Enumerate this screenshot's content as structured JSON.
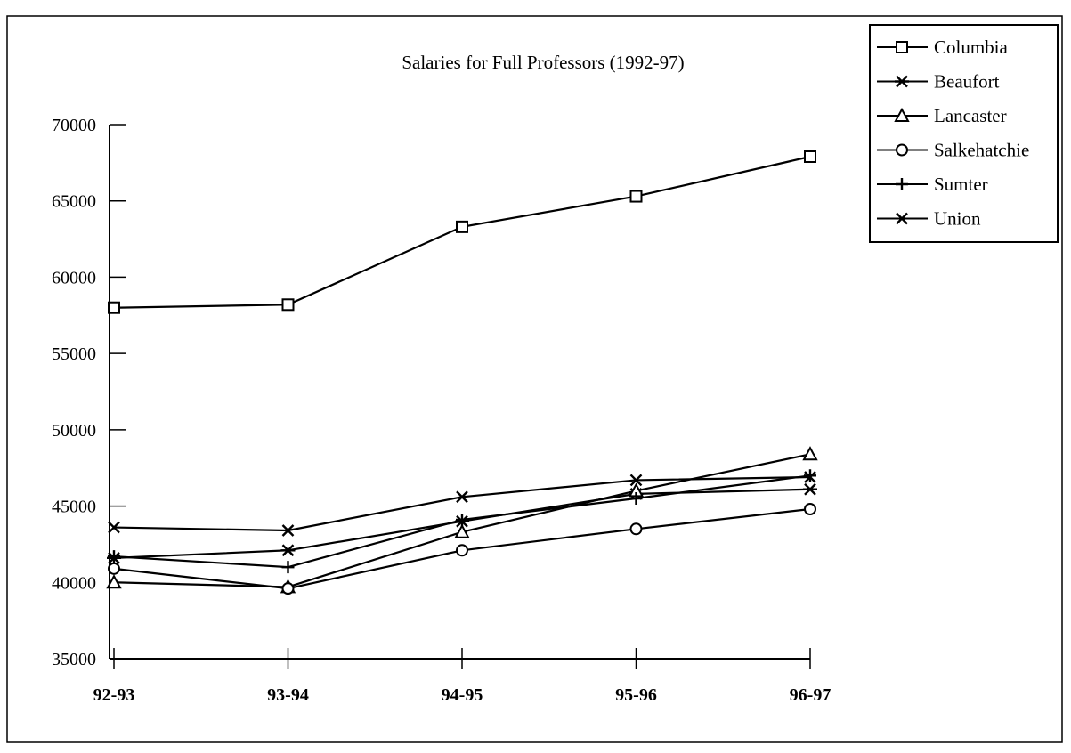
{
  "chart_data": {
    "type": "line",
    "title": "Salaries for Full Professors (1992-97)",
    "xlabel": "",
    "ylabel": "",
    "categories": [
      "92-93",
      "93-94",
      "94-95",
      "95-96",
      "96-97"
    ],
    "ylim": [
      35000,
      70000
    ],
    "yticks": [
      35000,
      40000,
      45000,
      50000,
      55000,
      60000,
      65000,
      70000
    ],
    "legend_position": "top-right",
    "grid": false,
    "series": [
      {
        "name": "Columbia",
        "marker": "square",
        "values": [
          58000,
          58200,
          63300,
          65300,
          67900
        ]
      },
      {
        "name": "Beaufort",
        "marker": "asterisk",
        "values": [
          41600,
          42100,
          44000,
          45800,
          46100
        ]
      },
      {
        "name": "Lancaster",
        "marker": "triangle",
        "values": [
          40000,
          39700,
          43300,
          46000,
          48400
        ]
      },
      {
        "name": "Salkehatchie",
        "marker": "circle",
        "values": [
          40900,
          39600,
          42100,
          43500,
          44800
        ]
      },
      {
        "name": "Sumter",
        "marker": "plus",
        "values": [
          41700,
          41000,
          44100,
          45500,
          47000
        ]
      },
      {
        "name": "Union",
        "marker": "x",
        "values": [
          43600,
          43400,
          45600,
          46700,
          46900
        ]
      }
    ]
  }
}
